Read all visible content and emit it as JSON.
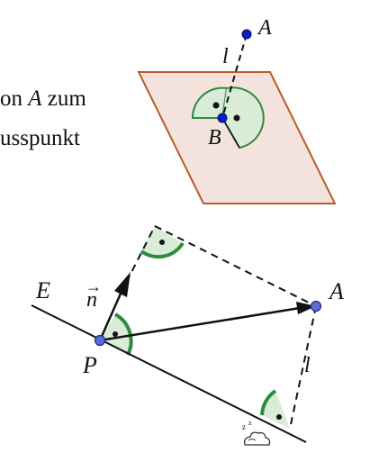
{
  "text": {
    "line1_prefix": "on ",
    "line1_var": "A",
    "line1_suffix": " zum",
    "line2": "usspunkt"
  },
  "top_figure": {
    "point_A": "A",
    "point_B": "B",
    "line_l": "l"
  },
  "bottom_figure": {
    "plane_E": "E",
    "point_P": "P",
    "point_A": "A",
    "vector_n": "n",
    "vector_arrow": "→",
    "line_l": "l"
  },
  "colors": {
    "plane_fill": "#f4e2dc",
    "plane_stroke": "#b85c2a",
    "angle_fill": "#d8ecd8",
    "angle_stroke": "#2e8b3c",
    "point_top": "#0a1fc0",
    "point_bottom": "#5a6cd8"
  }
}
